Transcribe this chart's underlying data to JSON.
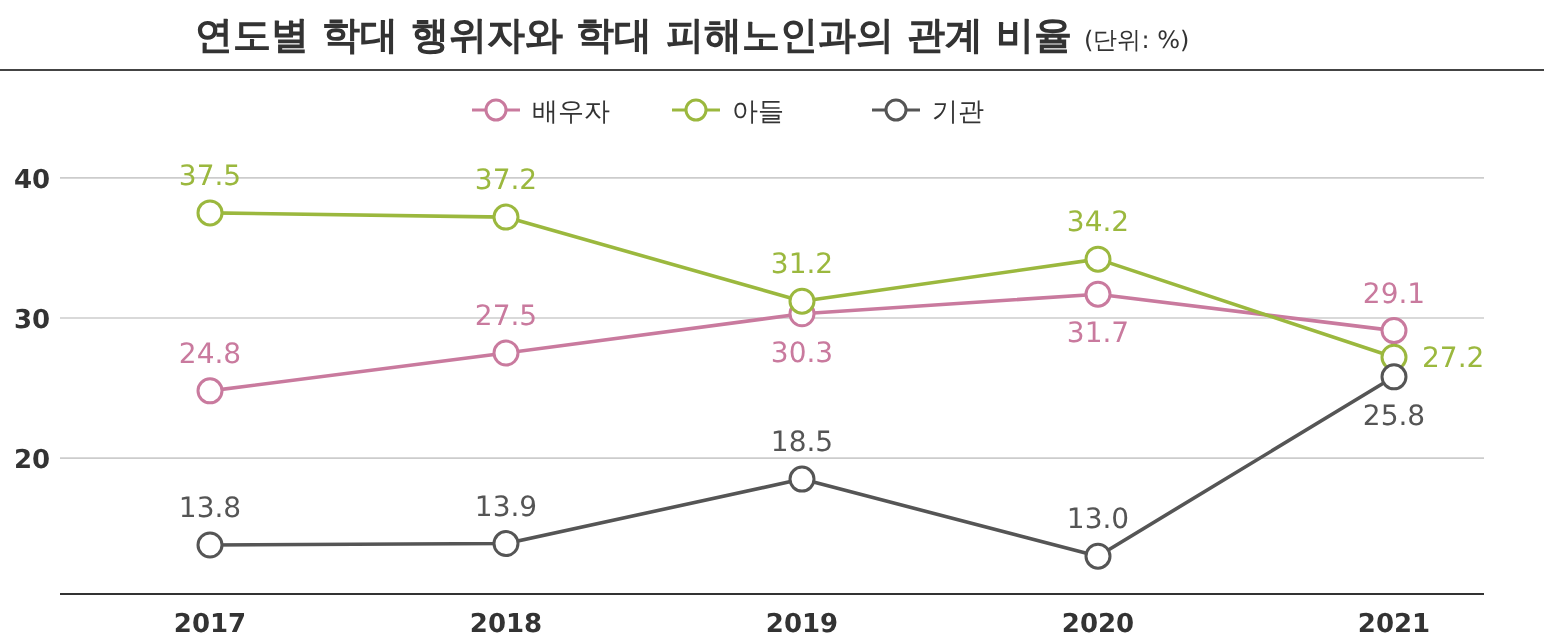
{
  "chart_data": {
    "type": "line",
    "title": "연도별 학대 행위자와 학대 피해노인과의 관계 비율",
    "subtitle": "(단위: %)",
    "categories": [
      "2017",
      "2018",
      "2019",
      "2020",
      "2021"
    ],
    "series": [
      {
        "name": "배우자",
        "color": "#c97a9e",
        "values": [
          24.8,
          27.5,
          30.3,
          31.7,
          29.1
        ],
        "value_labels": [
          "24.8",
          "27.5",
          "30.3",
          "31.7",
          "29.1"
        ]
      },
      {
        "name": "아들",
        "color": "#9bb83e",
        "values": [
          37.5,
          37.2,
          31.2,
          34.2,
          27.2
        ],
        "value_labels": [
          "37.5",
          "37.2",
          "31.2",
          "34.2",
          "27.2"
        ]
      },
      {
        "name": "기관",
        "color": "#555555",
        "values": [
          13.8,
          13.9,
          18.5,
          13.0,
          25.8
        ],
        "value_labels": [
          "13.8",
          "13.9",
          "18.5",
          "13.0",
          "25.8"
        ]
      }
    ],
    "ylim": [
      10.3,
      47.7
    ],
    "yticks": [
      20,
      30,
      40
    ],
    "grid": "y",
    "legend": "top",
    "marker": "circle",
    "line_style": "solid"
  }
}
